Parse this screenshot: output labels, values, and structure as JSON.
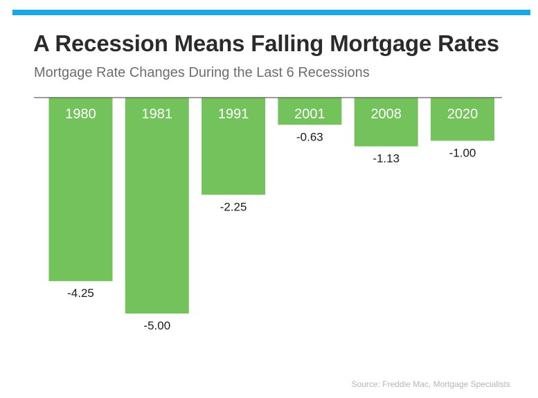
{
  "header": {
    "title": "A Recession Means Falling Mortgage Rates",
    "subtitle": "Mortgage Rate Changes During the Last 6 Recessions"
  },
  "footer": {
    "source": "Source: Freddie Mac, Mortgage Specialists"
  },
  "colors": {
    "accent": "#1aa7e8",
    "bar": "#74c25c",
    "axis": "#3a3a3a",
    "title": "#2b2b2b",
    "subtitle": "#6d6d6d",
    "source": "#b5b5b5"
  },
  "chart_data": {
    "type": "bar",
    "categories": [
      "1980",
      "1981",
      "1991",
      "2001",
      "2008",
      "2020"
    ],
    "values": [
      -4.25,
      -5.0,
      -2.25,
      -0.63,
      -1.13,
      -1.0
    ],
    "value_labels": [
      "-4.25",
      "-5.00",
      "-2.25",
      "-0.63",
      "-1.13",
      "-1.00"
    ],
    "title": "A Recession Means Falling Mortgage Rates",
    "subtitle": "Mortgage Rate Changes During the Last 6 Recessions",
    "xlabel": "",
    "ylabel": "",
    "ylim": [
      -5.0,
      0
    ],
    "grid": false,
    "legend": "none",
    "category_labels_position": "inside-bar-top"
  }
}
